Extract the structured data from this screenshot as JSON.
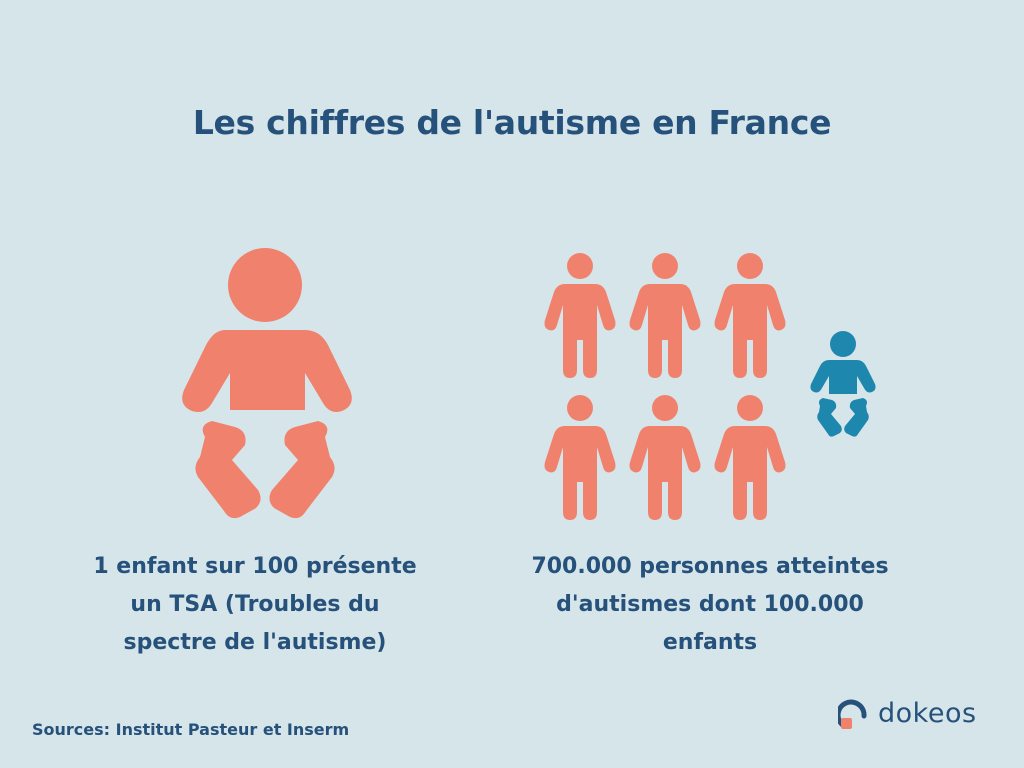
{
  "title": "Les chiffres de l'autisme en France",
  "left_caption": [
    "1 enfant sur 100 présente",
    "un TSA (Troubles du",
    "spectre de l'autisme)"
  ],
  "right_caption": [
    "700.000 personnes atteintes",
    "d'autismes dont 100.000",
    "enfants"
  ],
  "sources": "Sources: Institut Pasteur et Inserm",
  "logo": {
    "word": "dokeos",
    "icon": "dokeos-logo-icon"
  },
  "icons": {
    "big_baby": "baby-icon",
    "adults": "person-icon",
    "small_baby": "baby-icon"
  },
  "colors": {
    "background": "#d6e5ea",
    "title": "#26517a",
    "salmon": "#f0826d",
    "blue": "#1e87ad",
    "logo_square": "#f0826d"
  }
}
